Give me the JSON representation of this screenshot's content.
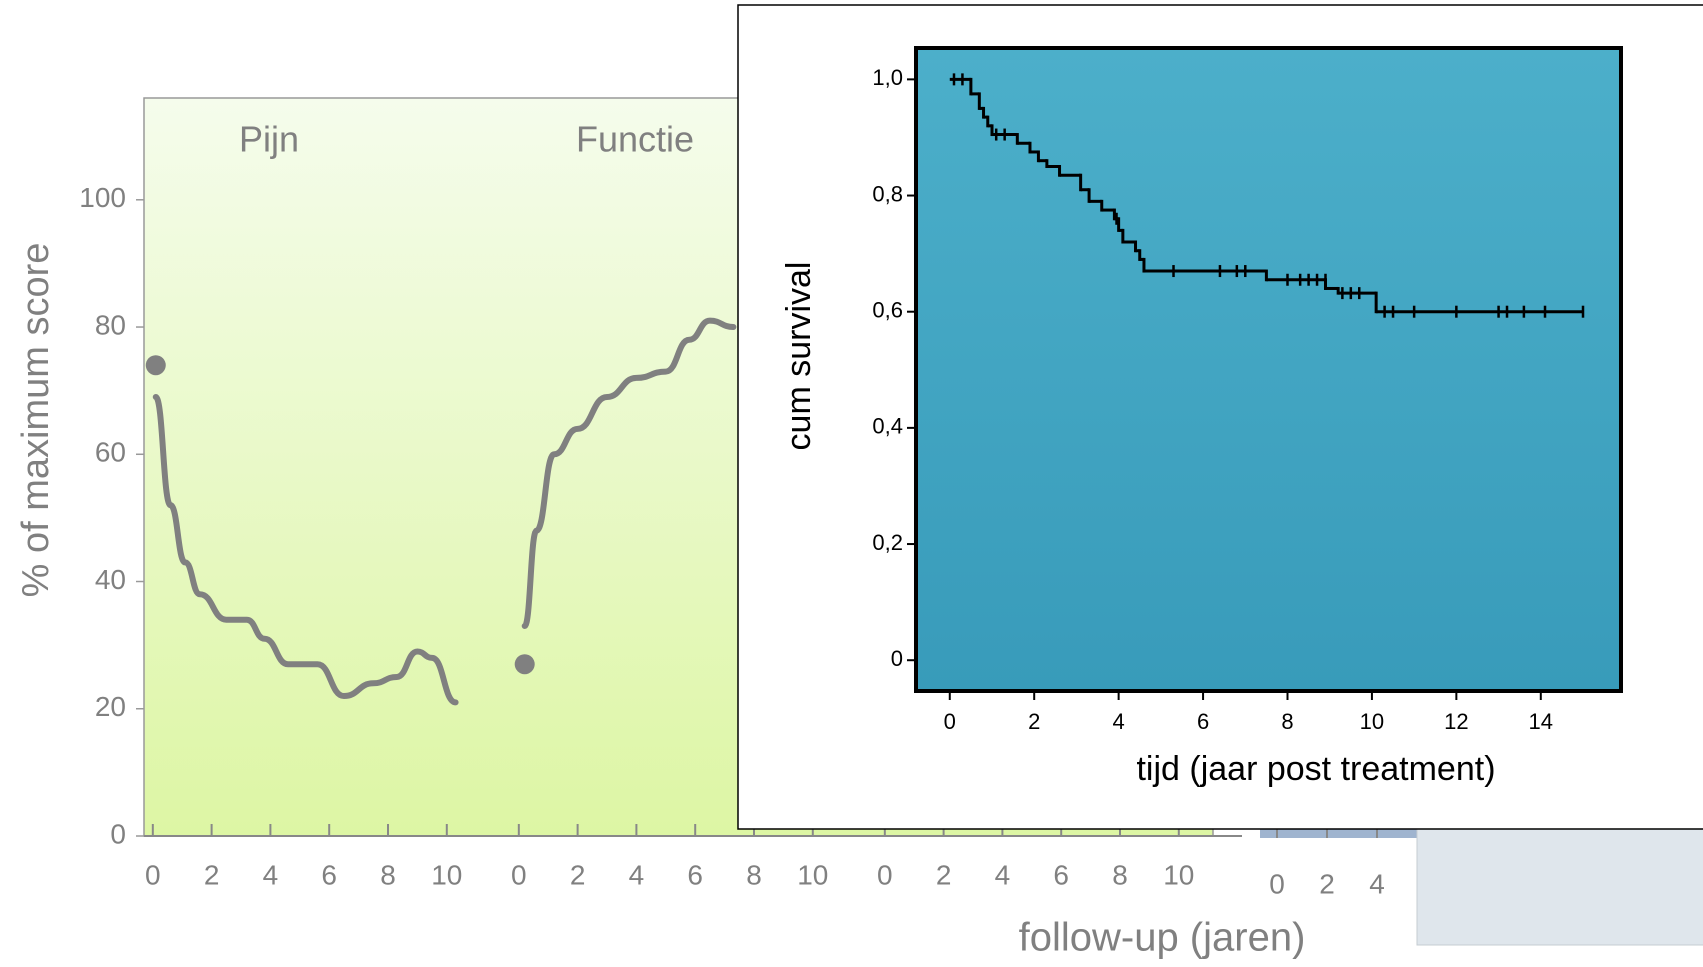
{
  "chart_data": [
    {
      "type": "panel-line",
      "ylabel": "% of maximum score",
      "xlabel": "follow-up (jaren)",
      "ylim": [
        0,
        116
      ],
      "yticks": [
        0,
        20,
        40,
        60,
        80,
        100
      ],
      "xlim": [
        -0.3,
        12.15
      ],
      "color": "#808080",
      "panels": [
        {
          "title": "Pijn",
          "xticks": [
            0,
            2,
            4,
            6,
            8,
            10
          ],
          "baseline": {
            "x": 0.1,
            "value": 74
          },
          "x": [
            0.1,
            0.6,
            1.1,
            1.6,
            2.5,
            3.2,
            3.8,
            4.6,
            5.6,
            6.5,
            7.5,
            8.3,
            9.0,
            9.5,
            10.3
          ],
          "values": [
            69,
            52,
            43,
            38,
            34,
            34,
            31,
            27,
            27,
            22,
            24,
            25,
            29,
            28,
            21
          ]
        },
        {
          "title": "Functie",
          "xticks": [
            0,
            2,
            4,
            6,
            8,
            10
          ],
          "baseline": {
            "x": 0.2,
            "value": 27
          },
          "x": [
            0.2,
            0.6,
            1.2,
            2.0,
            3.0,
            4.0,
            5.0,
            5.8,
            6.5,
            7.3
          ],
          "values": [
            33,
            48,
            60,
            64,
            69,
            72,
            73,
            78,
            81,
            80
          ]
        },
        {
          "xticks": [
            0,
            2,
            4,
            6,
            8,
            10
          ]
        },
        {
          "xticks": [
            0,
            2,
            4
          ]
        }
      ]
    },
    {
      "type": "kaplan-meier",
      "ylabel": "cum survival",
      "xlabel": "tijd (jaar post treatment)",
      "xlim": [
        -0.8,
        15.9
      ],
      "xticks": [
        0,
        2,
        4,
        6,
        8,
        10,
        12,
        14
      ],
      "ylim": [
        -0.053,
        1.054
      ],
      "yticks": [
        0,
        {
          "value": 0.2,
          "label": "0,2"
        },
        {
          "value": 0.4,
          "label": "0,4"
        },
        {
          "value": 0.6,
          "label": "0,6"
        },
        {
          "value": 0.8,
          "label": "0,8"
        },
        {
          "value": 1.0,
          "label": "1,0"
        }
      ],
      "color": "#000000",
      "series": [
        {
          "x": [
            0,
            0.5,
            0.7,
            0.8,
            0.9,
            1.0,
            1.6,
            1.9,
            2.1,
            2.3,
            2.6,
            3.1,
            3.3,
            3.6,
            3.9,
            4.0,
            4.1,
            4.4,
            4.5,
            4.6,
            7.5,
            8.9,
            9.2,
            10.1
          ],
          "values": [
            1.0,
            0.975,
            0.95,
            0.935,
            0.92,
            0.905,
            0.89,
            0.875,
            0.86,
            0.85,
            0.835,
            0.81,
            0.79,
            0.775,
            0.76,
            0.74,
            0.72,
            0.705,
            0.69,
            0.67,
            0.655,
            0.64,
            0.632,
            0.6
          ]
        }
      ],
      "censored": {
        "x": [
          0.1,
          0.3,
          1.1,
          1.3,
          3.95,
          5.3,
          6.4,
          6.8,
          7.0,
          8.0,
          8.3,
          8.5,
          8.7,
          8.9,
          9.3,
          9.5,
          9.7,
          10.3,
          10.5,
          11.0,
          12.0,
          13.0,
          13.2,
          13.6,
          14.1,
          15.0
        ],
        "values": [
          1.0,
          1.0,
          0.905,
          0.905,
          0.76,
          0.67,
          0.67,
          0.67,
          0.67,
          0.655,
          0.655,
          0.655,
          0.655,
          0.655,
          0.632,
          0.632,
          0.632,
          0.6,
          0.6,
          0.6,
          0.6,
          0.6,
          0.6,
          0.6,
          0.6,
          0.6
        ]
      }
    }
  ]
}
